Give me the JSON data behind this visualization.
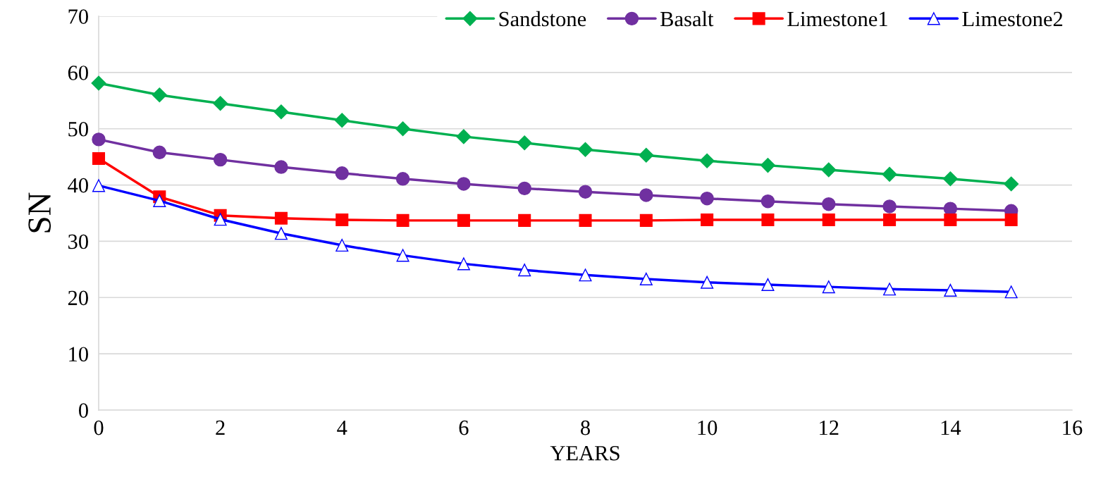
{
  "chart_data": {
    "type": "line",
    "xlabel": "YEARS",
    "ylabel": "SN",
    "x": [
      0,
      1,
      2,
      3,
      4,
      5,
      6,
      7,
      8,
      9,
      10,
      11,
      12,
      13,
      14,
      15
    ],
    "series": [
      {
        "name": "Sandstone",
        "color": "#00b050",
        "marker": "diamond",
        "values": [
          58.1,
          56.0,
          54.5,
          53.0,
          51.5,
          50.0,
          48.6,
          47.5,
          46.3,
          45.3,
          44.3,
          43.5,
          42.7,
          41.9,
          41.1,
          40.2
        ]
      },
      {
        "name": "Basalt",
        "color": "#7030a0",
        "marker": "circle",
        "values": [
          48.1,
          45.8,
          44.5,
          43.2,
          42.1,
          41.1,
          40.2,
          39.4,
          38.8,
          38.2,
          37.6,
          37.1,
          36.6,
          36.2,
          35.8,
          35.4
        ]
      },
      {
        "name": "Limestone1",
        "color": "#ff0000",
        "marker": "square",
        "values": [
          44.7,
          37.9,
          34.6,
          34.1,
          33.8,
          33.7,
          33.7,
          33.7,
          33.7,
          33.7,
          33.8,
          33.8,
          33.8,
          33.8,
          33.8,
          33.8
        ]
      },
      {
        "name": "Limestone2",
        "color": "#0000ff",
        "marker": "triangle",
        "values": [
          39.9,
          37.2,
          33.9,
          31.4,
          29.3,
          27.5,
          26.0,
          24.9,
          24.0,
          23.3,
          22.7,
          22.3,
          21.9,
          21.5,
          21.3,
          21.0
        ]
      }
    ],
    "xlim": [
      0,
      16
    ],
    "xticks": [
      0,
      2,
      4,
      6,
      8,
      10,
      12,
      14,
      16
    ],
    "ylim": [
      0,
      70
    ],
    "yticks": [
      0,
      10,
      20,
      30,
      40,
      50,
      60,
      70
    ],
    "grid": "y",
    "legend": "top right",
    "line_style": "solid"
  }
}
